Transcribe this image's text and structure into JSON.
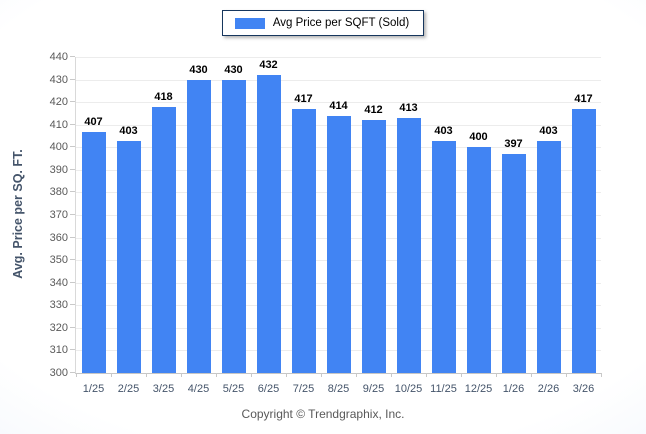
{
  "legend": {
    "label": "Avg Price per SQFT (Sold)"
  },
  "chart_data": {
    "type": "bar",
    "title": "",
    "xlabel": "",
    "ylabel": "Avg. Price per SQ. FT.",
    "categories": [
      "1/25",
      "2/25",
      "3/25",
      "4/25",
      "5/25",
      "6/25",
      "7/25",
      "8/25",
      "9/25",
      "10/25",
      "11/25",
      "12/25",
      "1/26",
      "2/26",
      "3/26"
    ],
    "values": [
      407,
      403,
      418,
      430,
      430,
      432,
      417,
      414,
      412,
      413,
      403,
      400,
      397,
      403,
      417
    ],
    "ylim": [
      300,
      440
    ],
    "ytick_step": 10,
    "grid": "horizontal",
    "legend_position": "top",
    "data_labels": true
  },
  "colors": {
    "bar": "#4184f3",
    "legend_border": "#16365d",
    "gridline": "#ececec",
    "axis": "#c9c9c9",
    "ytick_text": "#595959",
    "xtick_text": "#44546a",
    "value_text": "#000000",
    "ytitle_text": "#44546a",
    "copyright_text": "#595959",
    "background_edge": "#e3ecf9"
  },
  "footer": {
    "copyright": "Copyright © Trendgraphix, Inc."
  }
}
